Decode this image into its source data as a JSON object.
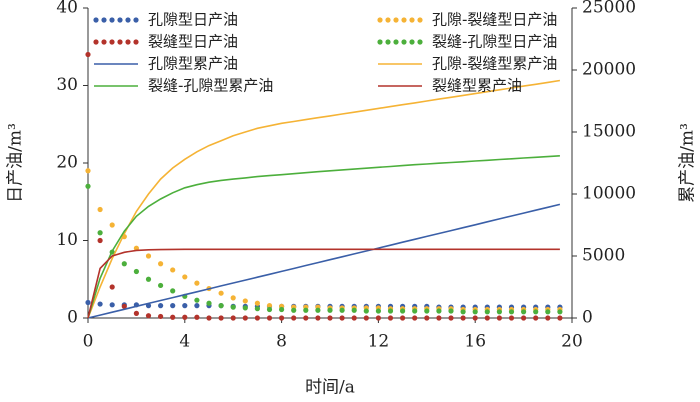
{
  "chart_data": {
    "type": "line",
    "x_label": "时间/a",
    "y_label": "日产油/m³",
    "y2_label": "累产油/m³",
    "xlim": [
      0,
      20
    ],
    "xticks": [
      0,
      4,
      8,
      12,
      16,
      20
    ],
    "ylim": [
      0,
      40
    ],
    "yticks": [
      0,
      10,
      20,
      30,
      40
    ],
    "y2lim": [
      0,
      25000
    ],
    "y2ticks": [
      0,
      5000,
      10000,
      15000,
      20000,
      25000
    ],
    "x": [
      0,
      0.5,
      1,
      1.5,
      2,
      2.5,
      3,
      3.5,
      4,
      4.5,
      5,
      5.5,
      6,
      6.5,
      7,
      7.5,
      8,
      8.5,
      9,
      9.5,
      10,
      10.5,
      11,
      11.5,
      12,
      12.5,
      13,
      13.5,
      14,
      14.5,
      15,
      15.5,
      16,
      16.5,
      17,
      17.5,
      18,
      18.5,
      19,
      19.5
    ],
    "series": [
      {
        "name": "孔隙型日产油",
        "color": "#3a5fa8",
        "values": [
          2.0,
          1.8,
          1.7,
          1.7,
          1.7,
          1.6,
          1.6,
          1.6,
          1.6,
          1.6,
          1.6,
          1.6,
          1.5,
          1.5,
          1.5,
          1.5,
          1.5,
          1.5,
          1.5,
          1.5,
          1.5,
          1.5,
          1.5,
          1.5,
          1.5,
          1.5,
          1.5,
          1.5,
          1.5,
          1.4,
          1.4,
          1.4,
          1.4,
          1.4,
          1.4,
          1.4,
          1.4,
          1.4,
          1.4,
          1.4
        ]
      },
      {
        "name": "孔隙-裂缝型日产油",
        "color": "#f5b335",
        "values": [
          19,
          14,
          12,
          10.5,
          9,
          8,
          7,
          6.2,
          5.3,
          4.5,
          3.8,
          3.2,
          2.6,
          2.2,
          1.9,
          1.6,
          1.5,
          1.4,
          1.4,
          1.4,
          1.3,
          1.3,
          1.3,
          1.3,
          1.3,
          1.2,
          1.2,
          1.2,
          1.2,
          1.2,
          1.2,
          1.1,
          1.1,
          1.1,
          1.1,
          1.1,
          1.1,
          1.1,
          1.1,
          1.1
        ]
      },
      {
        "name": "裂缝型日产油",
        "color": "#b3332b",
        "values": [
          34,
          10,
          4,
          1.5,
          0.6,
          0.3,
          0.2,
          0.1,
          0.1,
          0.1,
          0,
          0,
          0,
          0,
          0,
          0,
          0,
          0,
          0,
          0,
          0,
          0,
          0,
          0,
          0,
          0,
          0,
          0,
          0,
          0,
          0,
          0,
          0,
          0,
          0,
          0,
          0,
          0,
          0,
          0
        ]
      },
      {
        "name": "裂缝-孔隙型日产油",
        "color": "#4caf3c",
        "values": [
          17,
          11,
          8.5,
          7,
          6,
          5,
          4.2,
          3.5,
          2.8,
          2.3,
          1.9,
          1.6,
          1.4,
          1.3,
          1.2,
          1.1,
          1.1,
          1.0,
          1.0,
          1.0,
          1.0,
          1.0,
          1.0,
          0.9,
          0.9,
          0.9,
          0.9,
          0.9,
          0.9,
          0.9,
          0.9,
          0.8,
          0.8,
          0.8,
          0.8,
          0.8,
          0.8,
          0.8,
          0.8,
          0.8
        ]
      },
      {
        "name": "孔隙型累产油",
        "color": "#3a5fa8",
        "axis": "y2",
        "values": [
          0,
          235,
          470,
          705,
          940,
          1175,
          1410,
          1645,
          1880,
          2115,
          2350,
          2585,
          2820,
          3055,
          3290,
          3525,
          3760,
          3995,
          4230,
          4465,
          4700,
          4935,
          5170,
          5405,
          5640,
          5875,
          6110,
          6345,
          6580,
          6815,
          7050,
          7285,
          7520,
          7755,
          7990,
          8225,
          8460,
          8695,
          8930,
          9165
        ]
      },
      {
        "name": "孔隙-裂缝型累产油",
        "color": "#f5b335",
        "axis": "y2",
        "values": [
          0,
          2500,
          4800,
          6800,
          8600,
          10000,
          11200,
          12100,
          12800,
          13400,
          13900,
          14300,
          14700,
          15000,
          15300,
          15500,
          15700,
          15850,
          16000,
          16150,
          16300,
          16450,
          16600,
          16750,
          16900,
          17050,
          17200,
          17350,
          17500,
          17650,
          17800,
          17950,
          18100,
          18250,
          18400,
          18550,
          18700,
          18850,
          19000,
          19150
        ]
      },
      {
        "name": "裂缝-孔隙型累产油",
        "color": "#4caf3c",
        "axis": "y2",
        "values": [
          0,
          3200,
          5400,
          7000,
          8200,
          9000,
          9600,
          10100,
          10500,
          10750,
          10950,
          11100,
          11200,
          11300,
          11400,
          11480,
          11560,
          11640,
          11720,
          11800,
          11870,
          11940,
          12010,
          12080,
          12150,
          12220,
          12290,
          12360,
          12420,
          12480,
          12540,
          12600,
          12660,
          12720,
          12780,
          12840,
          12900,
          12960,
          13020,
          13080
        ]
      },
      {
        "name": "裂缝型累产油",
        "color": "#b3332b",
        "axis": "y2",
        "values": [
          0,
          4000,
          5000,
          5300,
          5450,
          5500,
          5520,
          5530,
          5540,
          5540,
          5540,
          5540,
          5540,
          5540,
          5540,
          5540,
          5540,
          5540,
          5540,
          5540,
          5540,
          5540,
          5540,
          5540,
          5540,
          5540,
          5540,
          5540,
          5540,
          5540,
          5540,
          5540,
          5540,
          5540,
          5540,
          5540,
          5540,
          5540,
          5540,
          5540
        ]
      }
    ]
  }
}
